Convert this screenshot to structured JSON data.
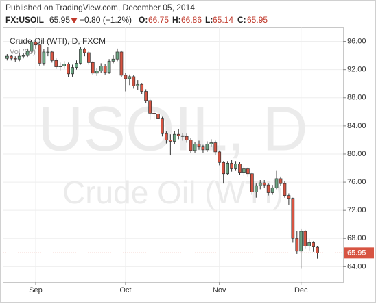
{
  "chart_data": {
    "type": "candlestick",
    "published": "Published on TradingView.com, December 05, 2014",
    "symbol": "FX:USOIL",
    "change": "−0.80 (−1.2%)",
    "ohlc_prefixes": [
      "O:",
      "H:",
      "L:",
      "C:"
    ],
    "title": "Crude Oil (WTI), D, FXCM",
    "volume_label": "Vol (20)",
    "watermark": [
      "USOIL, D",
      "Crude Oil (WTI)"
    ],
    "up_color": "#6ba583",
    "down_color": "#d75442",
    "grid": true,
    "ylim": [
      61.8,
      98.0
    ],
    "yticks": [
      {
        "value": 64,
        "label": "64.00"
      },
      {
        "value": 68,
        "label": "68.00"
      },
      {
        "value": 72,
        "label": "72.00"
      },
      {
        "value": 76,
        "label": "76.00"
      },
      {
        "value": 80,
        "label": "80.00"
      },
      {
        "value": 84,
        "label": "84.00"
      },
      {
        "value": 88,
        "label": "88.00"
      },
      {
        "value": 92,
        "label": "92.00"
      },
      {
        "value": 96,
        "label": "96.00"
      }
    ],
    "categories": [
      null,
      null,
      null,
      null,
      null,
      null,
      null,
      "Sep",
      null,
      null,
      null,
      null,
      null,
      null,
      null,
      null,
      null,
      null,
      null,
      null,
      null,
      null,
      null,
      null,
      null,
      null,
      null,
      null,
      null,
      "Oct",
      null,
      null,
      null,
      null,
      null,
      null,
      null,
      null,
      null,
      null,
      null,
      null,
      null,
      null,
      null,
      null,
      null,
      null,
      null,
      null,
      null,
      null,
      "Nov",
      null,
      null,
      null,
      null,
      null,
      null,
      null,
      null,
      null,
      null,
      null,
      null,
      null,
      null,
      null,
      null,
      null,
      null,
      null,
      "Dec",
      null,
      null,
      null,
      null
    ],
    "open": [
      93.6,
      93.9,
      93.6,
      93.5,
      93.9,
      94.0,
      94.6,
      95.9,
      95.5,
      92.9,
      94.5,
      94.5,
      93.3,
      92.4,
      92.5,
      92.8,
      91.4,
      92.3,
      92.9,
      94.9,
      94.4,
      93.0,
      91.5,
      91.8,
      92.5,
      91.6,
      93.2,
      93.5,
      94.5,
      91.2,
      90.7,
      91.0,
      89.7,
      89.9,
      88.9,
      87.6,
      85.8,
      85.7,
      85.0,
      82.9,
      82.0,
      81.8,
      82.8,
      82.6,
      82.5,
      82.0,
      80.5,
      81.4,
      81.0,
      80.6,
      81.4,
      81.6,
      80.3,
      78.8,
      77.2,
      78.7,
      77.9,
      78.6,
      77.4,
      77.9,
      77.2,
      74.6,
      75.5,
      75.9,
      75.6,
      74.5,
      75.2,
      76.5,
      75.8,
      74.1,
      73.7,
      68.0,
      66.2,
      69.0,
      66.9,
      67.4,
      66.75
    ],
    "high": [
      94.2,
      94.1,
      93.9,
      94.3,
      94.4,
      95.0,
      96.2,
      96.0,
      95.7,
      94.9,
      95.2,
      94.7,
      93.6,
      93.0,
      93.2,
      93.0,
      92.7,
      93.3,
      95.2,
      95.1,
      94.6,
      93.2,
      92.2,
      92.9,
      92.8,
      93.5,
      94.0,
      95.0,
      94.7,
      91.5,
      91.3,
      91.2,
      90.5,
      90.1,
      89.2,
      87.9,
      86.2,
      86.0,
      85.3,
      83.2,
      82.8,
      83.3,
      83.6,
      83.0,
      82.9,
      82.3,
      81.7,
      81.9,
      81.3,
      81.8,
      82.1,
      81.9,
      80.5,
      79.0,
      79.0,
      79.2,
      79.0,
      78.9,
      78.3,
      78.1,
      77.4,
      75.8,
      76.3,
      76.3,
      75.8,
      75.6,
      77.6,
      76.8,
      76.1,
      74.4,
      73.8,
      69.0,
      69.4,
      69.2,
      67.9,
      67.6,
      66.86
    ],
    "low": [
      93.3,
      93.3,
      93.1,
      93.2,
      93.6,
      93.8,
      94.4,
      95.0,
      92.5,
      92.6,
      93.9,
      93.0,
      92.1,
      91.9,
      92.1,
      90.9,
      91.0,
      92.0,
      92.7,
      93.9,
      92.7,
      91.2,
      91.1,
      91.5,
      91.3,
      91.4,
      92.9,
      93.2,
      90.9,
      88.9,
      89.8,
      89.3,
      89.1,
      88.5,
      87.2,
      84.9,
      84.8,
      84.2,
      82.5,
      81.5,
      79.8,
      81.4,
      82.1,
      81.9,
      81.6,
      80.1,
      80.2,
      80.6,
      80.2,
      80.3,
      81.0,
      79.8,
      78.4,
      75.8,
      77.0,
      77.5,
      77.6,
      77.0,
      76.9,
      76.8,
      74.2,
      73.8,
      75.0,
      75.2,
      74.1,
      74.2,
      75.0,
      75.5,
      73.8,
      72.8,
      67.4,
      65.8,
      63.7,
      66.5,
      66.3,
      66.1,
      65.14
    ],
    "close": [
      93.9,
      93.6,
      93.5,
      93.9,
      94.0,
      94.6,
      95.9,
      95.5,
      92.9,
      94.5,
      94.5,
      93.3,
      92.4,
      92.5,
      92.8,
      91.4,
      92.3,
      92.9,
      94.9,
      94.4,
      93.0,
      91.5,
      91.8,
      92.5,
      91.6,
      93.2,
      93.5,
      94.5,
      91.2,
      90.7,
      91.0,
      89.7,
      89.9,
      88.9,
      87.6,
      85.8,
      85.7,
      85.0,
      82.9,
      82.0,
      81.8,
      82.8,
      82.6,
      82.5,
      82.0,
      80.5,
      81.4,
      81.0,
      80.6,
      81.4,
      81.6,
      80.3,
      78.8,
      77.2,
      78.7,
      77.9,
      78.6,
      77.4,
      77.9,
      77.2,
      74.6,
      75.5,
      75.9,
      75.6,
      74.5,
      75.2,
      76.5,
      75.8,
      74.1,
      73.7,
      68.0,
      66.2,
      69.0,
      66.9,
      67.4,
      66.8,
      65.95
    ]
  }
}
